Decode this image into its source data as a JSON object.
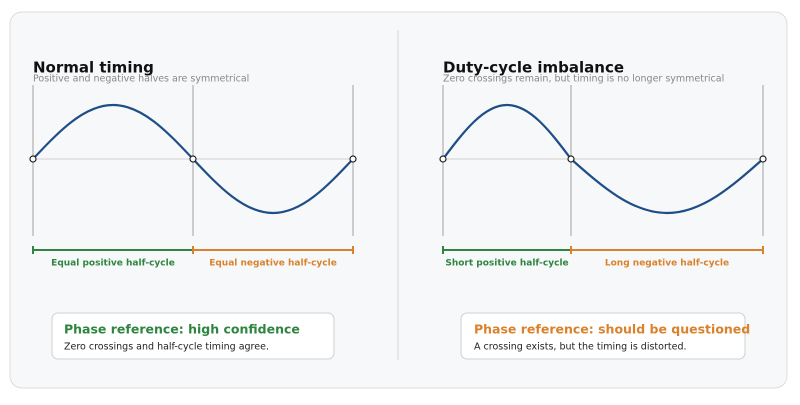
{
  "panels": [
    {
      "title": "Normal timing",
      "subtitle": "Positive and negative halves are symmetrical",
      "positive_label": "Equal positive half-cycle",
      "negative_label": "Equal negative half-cycle",
      "callout_heading": "Phase reference: high confidence",
      "callout_text": "Zero crossings and half-cycle timing agree."
    },
    {
      "title": "Duty-cycle imbalance",
      "subtitle": "Zero crossings remain, but timing is no longer symmetrical",
      "positive_label": "Short positive half-cycle",
      "negative_label": "Long negative half-cycle",
      "callout_heading": "Phase reference: should be questioned",
      "callout_text": "A crossing exists, but the timing is distorted."
    }
  ]
}
